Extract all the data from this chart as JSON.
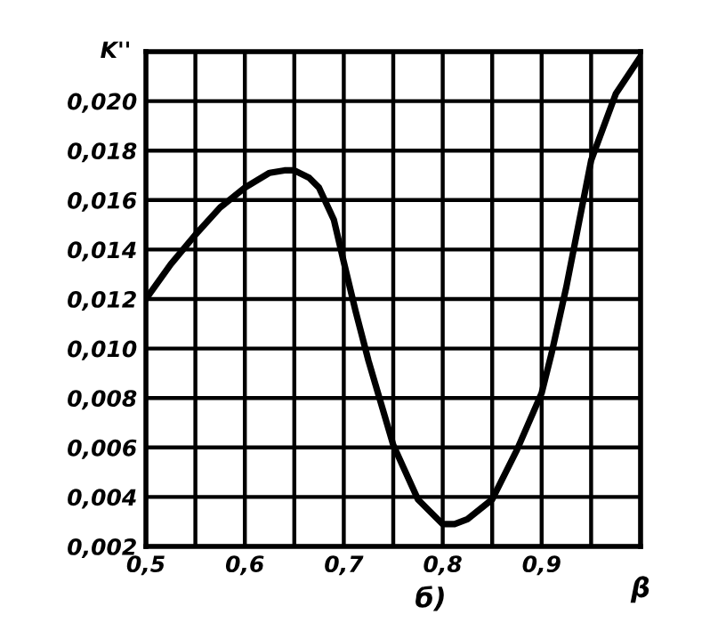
{
  "chart_data": {
    "type": "line",
    "xlabel": "β",
    "ylabel": "K''",
    "annotations": [
      "б)"
    ],
    "x": [
      0.5,
      0.525,
      0.55,
      0.575,
      0.6,
      0.625,
      0.64,
      0.65,
      0.665,
      0.675,
      0.69,
      0.7,
      0.712,
      0.725,
      0.75,
      0.775,
      0.8,
      0.812,
      0.825,
      0.85,
      0.875,
      0.9,
      0.91,
      0.925,
      0.95,
      0.975,
      1.0
    ],
    "series": [
      {
        "color": "#000000",
        "values": [
          0.012,
          0.0134,
          0.0146,
          0.0157,
          0.0165,
          0.0171,
          0.0172,
          0.0172,
          0.0169,
          0.0165,
          0.0152,
          0.0135,
          0.0115,
          0.0095,
          0.0061,
          0.0039,
          0.0029,
          0.0029,
          0.0031,
          0.0039,
          0.0059,
          0.0082,
          0.0098,
          0.0125,
          0.0176,
          0.0203,
          0.0218
        ]
      }
    ],
    "xlim": [
      0.5,
      1.0
    ],
    "ylim": [
      0.002,
      0.022
    ],
    "xticks": [
      {
        "value": 0.5,
        "label": "0,5"
      },
      {
        "value": 0.55,
        "label": null
      },
      {
        "value": 0.6,
        "label": "0,6"
      },
      {
        "value": 0.65,
        "label": null
      },
      {
        "value": 0.7,
        "label": "0,7"
      },
      {
        "value": 0.75,
        "label": null
      },
      {
        "value": 0.8,
        "label": "0,8"
      },
      {
        "value": 0.85,
        "label": null
      },
      {
        "value": 0.9,
        "label": "0,9"
      },
      {
        "value": 0.95,
        "label": null
      },
      {
        "value": 1.0,
        "label": null
      }
    ],
    "yticks": [
      {
        "value": 0.002,
        "label": "0,002"
      },
      {
        "value": 0.004,
        "label": "0,004"
      },
      {
        "value": 0.006,
        "label": "0,006"
      },
      {
        "value": 0.008,
        "label": "0,008"
      },
      {
        "value": 0.01,
        "label": "0,010"
      },
      {
        "value": 0.012,
        "label": "0,012"
      },
      {
        "value": 0.014,
        "label": "0,014"
      },
      {
        "value": 0.016,
        "label": "0,016"
      },
      {
        "value": 0.018,
        "label": "0,018"
      },
      {
        "value": 0.02,
        "label": "0,020"
      },
      {
        "value": 0.022,
        "label": null
      }
    ],
    "grid": true,
    "marker": "none",
    "line_style": "solid"
  }
}
